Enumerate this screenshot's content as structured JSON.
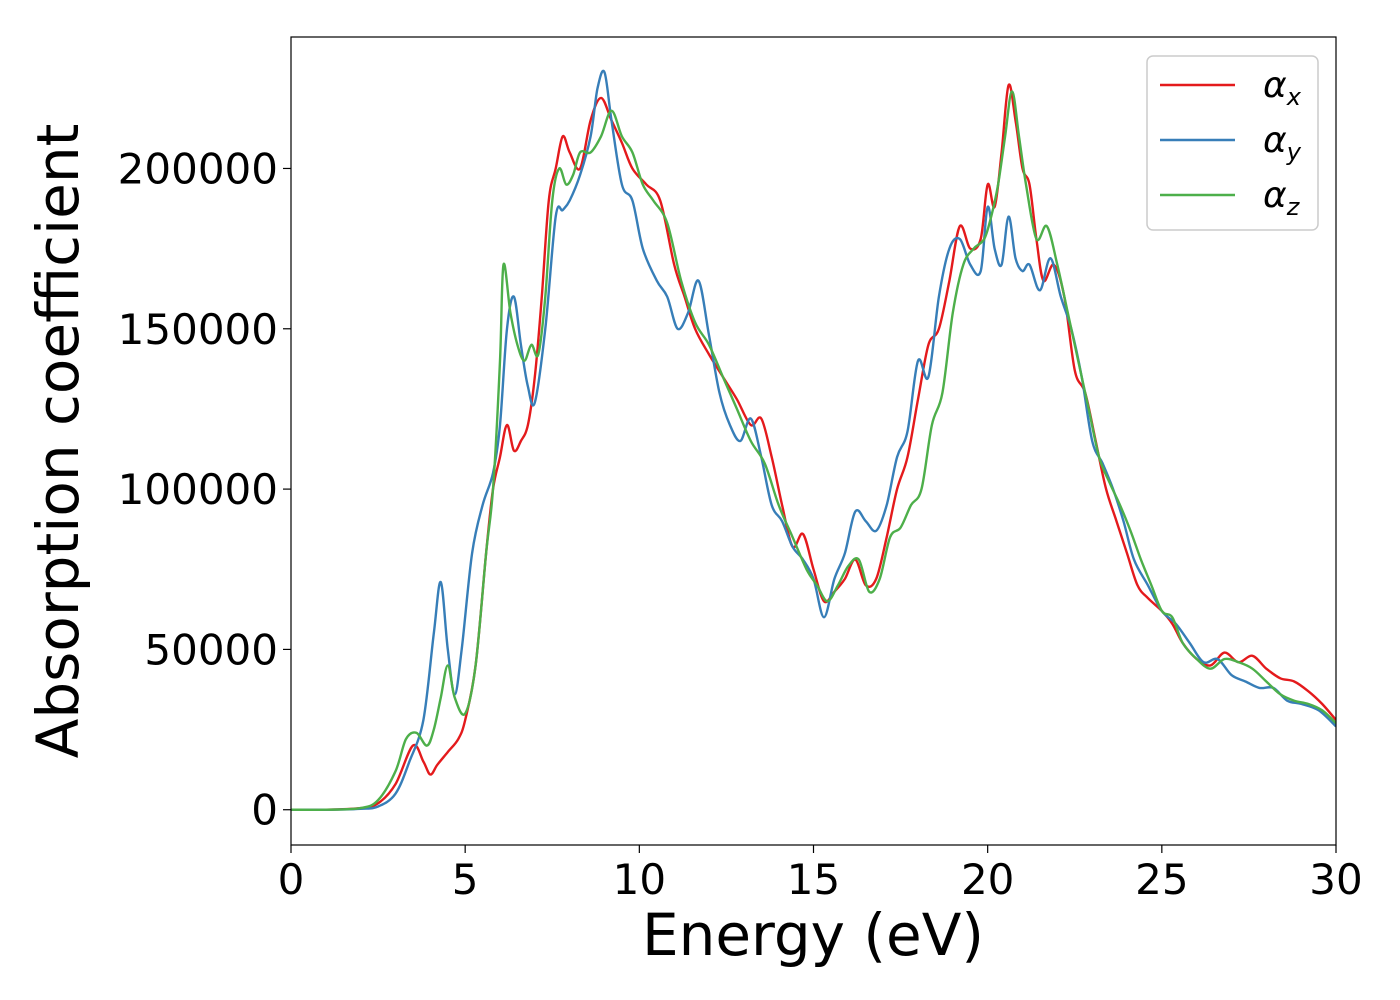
{
  "chart_data": {
    "type": "line",
    "title": "",
    "xlabel": "Energy (eV)",
    "ylabel": "Absorption coefficient",
    "xlim": [
      0,
      30
    ],
    "ylim": [
      -11000,
      241000
    ],
    "xticks": [
      0,
      5,
      10,
      15,
      20,
      25,
      30
    ],
    "yticks": [
      0,
      50000,
      100000,
      150000,
      200000
    ],
    "grid": false,
    "legend_position": "top-right",
    "series": [
      {
        "name": "α_x",
        "legend_base": "α",
        "legend_sub": "x",
        "color": "#e41a1c",
        "x": [
          0,
          1,
          2,
          2.5,
          3,
          3.5,
          3.8,
          4,
          4.2,
          4.5,
          4.8,
          5,
          5.3,
          5.6,
          5.8,
          6,
          6.2,
          6.4,
          6.6,
          6.8,
          7,
          7.2,
          7.4,
          7.6,
          7.8,
          8,
          8.3,
          8.6,
          8.9,
          9.2,
          9.5,
          9.8,
          10.2,
          10.6,
          11,
          11.3,
          11.6,
          12,
          12.4,
          12.8,
          13.2,
          13.5,
          13.8,
          14.1,
          14.4,
          14.7,
          15,
          15.3,
          15.6,
          15.9,
          16.2,
          16.5,
          16.8,
          17.1,
          17.4,
          17.7,
          18,
          18.3,
          18.6,
          18.9,
          19.2,
          19.5,
          19.8,
          20,
          20.2,
          20.4,
          20.6,
          20.8,
          21,
          21.2,
          21.4,
          21.6,
          21.9,
          22.2,
          22.5,
          22.8,
          23.1,
          23.4,
          23.7,
          24,
          24.3,
          24.6,
          25,
          25.3,
          25.6,
          26,
          26.4,
          26.8,
          27.2,
          27.6,
          28,
          28.4,
          28.8,
          29.2,
          29.6,
          30
        ],
        "y": [
          0,
          0,
          500,
          2000,
          8000,
          20000,
          15000,
          11000,
          14000,
          18000,
          22000,
          28000,
          45000,
          80000,
          100000,
          110000,
          120000,
          112000,
          115000,
          120000,
          135000,
          160000,
          190000,
          200000,
          210000,
          205000,
          200000,
          215000,
          222000,
          215000,
          208000,
          200000,
          195000,
          190000,
          170000,
          160000,
          150000,
          142000,
          135000,
          128000,
          120000,
          122000,
          110000,
          95000,
          82000,
          86000,
          75000,
          65000,
          68000,
          72000,
          78000,
          70000,
          72000,
          85000,
          100000,
          110000,
          128000,
          145000,
          150000,
          165000,
          182000,
          175000,
          178000,
          195000,
          188000,
          205000,
          226000,
          215000,
          200000,
          195000,
          178000,
          165000,
          170000,
          160000,
          137000,
          130000,
          115000,
          100000,
          90000,
          80000,
          70000,
          66000,
          62000,
          58000,
          52000,
          47000,
          45000,
          49000,
          46000,
          48000,
          44000,
          41000,
          40000,
          37000,
          33000,
          28000
        ]
      },
      {
        "name": "α_y",
        "legend_base": "α",
        "legend_sub": "y",
        "color": "#377eb8",
        "x": [
          0,
          1,
          2,
          2.5,
          3,
          3.4,
          3.8,
          4.1,
          4.3,
          4.5,
          4.7,
          4.9,
          5.2,
          5.5,
          5.8,
          6,
          6.2,
          6.4,
          6.6,
          6.8,
          7,
          7.3,
          7.6,
          7.8,
          8,
          8.3,
          8.6,
          8.8,
          9,
          9.2,
          9.5,
          9.8,
          10.1,
          10.5,
          10.8,
          11.1,
          11.4,
          11.7,
          12,
          12.3,
          12.6,
          12.9,
          13.2,
          13.5,
          13.8,
          14.1,
          14.4,
          14.7,
          15,
          15.3,
          15.6,
          15.9,
          16.2,
          16.5,
          16.8,
          17.1,
          17.4,
          17.7,
          18,
          18.3,
          18.6,
          18.9,
          19.2,
          19.5,
          19.8,
          20,
          20.2,
          20.4,
          20.6,
          20.8,
          21,
          21.2,
          21.5,
          21.8,
          22.1,
          22.4,
          22.7,
          23,
          23.3,
          23.6,
          23.9,
          24.2,
          24.6,
          25,
          25.4,
          25.8,
          26.2,
          26.6,
          27,
          27.4,
          27.8,
          28.2,
          28.6,
          29,
          29.5,
          30
        ],
        "y": [
          0,
          0,
          300,
          1000,
          5000,
          15000,
          28000,
          55000,
          71000,
          50000,
          36000,
          50000,
          80000,
          95000,
          105000,
          120000,
          150000,
          160000,
          145000,
          132000,
          127000,
          150000,
          185000,
          187000,
          190000,
          198000,
          210000,
          225000,
          230000,
          215000,
          195000,
          190000,
          175000,
          165000,
          160000,
          150000,
          155000,
          165000,
          148000,
          130000,
          120000,
          115000,
          122000,
          110000,
          95000,
          90000,
          82000,
          78000,
          72000,
          60000,
          72000,
          80000,
          93000,
          90000,
          87000,
          95000,
          110000,
          118000,
          140000,
          135000,
          160000,
          175000,
          178000,
          170000,
          168000,
          188000,
          175000,
          170000,
          185000,
          172000,
          168000,
          170000,
          162000,
          172000,
          160000,
          150000,
          135000,
          115000,
          108000,
          100000,
          90000,
          78000,
          70000,
          62000,
          58000,
          52000,
          46000,
          47000,
          42000,
          40000,
          38000,
          38000,
          34000,
          33000,
          31000,
          26000
        ]
      },
      {
        "name": "α_z",
        "legend_base": "α",
        "legend_sub": "z",
        "color": "#4daf4a",
        "x": [
          0,
          1,
          2,
          2.5,
          3,
          3.3,
          3.6,
          3.9,
          4.1,
          4.3,
          4.5,
          4.7,
          5,
          5.3,
          5.6,
          5.8,
          6,
          6.1,
          6.3,
          6.5,
          6.7,
          6.9,
          7.1,
          7.3,
          7.5,
          7.7,
          7.9,
          8.1,
          8.3,
          8.6,
          8.9,
          9.2,
          9.5,
          9.8,
          10.1,
          10.4,
          10.8,
          11.2,
          11.6,
          12,
          12.4,
          12.8,
          13.2,
          13.6,
          14,
          14.4,
          14.8,
          15.1,
          15.4,
          15.7,
          16,
          16.3,
          16.6,
          16.9,
          17.2,
          17.5,
          17.8,
          18.1,
          18.4,
          18.7,
          19,
          19.3,
          19.6,
          19.9,
          20.1,
          20.3,
          20.5,
          20.7,
          20.9,
          21.1,
          21.4,
          21.7,
          22,
          22.3,
          22.6,
          22.9,
          23.2,
          23.5,
          23.8,
          24.1,
          24.4,
          24.7,
          25,
          25.3,
          25.6,
          26,
          26.4,
          26.8,
          27.2,
          27.6,
          28,
          28.4,
          28.8,
          29.2,
          29.6,
          30
        ],
        "y": [
          0,
          0,
          500,
          3000,
          12000,
          22000,
          24000,
          20000,
          25000,
          35000,
          45000,
          35000,
          30000,
          45000,
          80000,
          100000,
          140000,
          170000,
          155000,
          145000,
          140000,
          145000,
          142000,
          160000,
          190000,
          200000,
          195000,
          198000,
          205000,
          205000,
          210000,
          218000,
          210000,
          205000,
          195000,
          190000,
          183000,
          165000,
          152000,
          145000,
          135000,
          125000,
          115000,
          108000,
          95000,
          85000,
          75000,
          70000,
          65000,
          70000,
          76000,
          78000,
          68000,
          72000,
          85000,
          88000,
          95000,
          100000,
          120000,
          130000,
          155000,
          170000,
          175000,
          178000,
          185000,
          195000,
          210000,
          224000,
          210000,
          195000,
          178000,
          182000,
          170000,
          155000,
          140000,
          125000,
          110000,
          102000,
          95000,
          87000,
          78000,
          70000,
          62000,
          60000,
          52000,
          47000,
          44000,
          47000,
          46000,
          44000,
          40000,
          36000,
          34000,
          33000,
          31000,
          27000
        ]
      }
    ]
  }
}
